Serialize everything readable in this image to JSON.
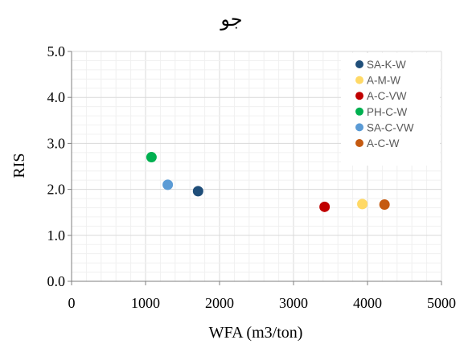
{
  "chart_data": {
    "type": "scatter",
    "title": "جو",
    "xlabel": "WFA (m3/ton)",
    "ylabel": "RIS",
    "xlim": [
      0,
      5000
    ],
    "ylim": [
      0,
      5
    ],
    "x_ticks": [
      0,
      1000,
      2000,
      3000,
      4000,
      5000
    ],
    "y_ticks": [
      0,
      1,
      2,
      3,
      4,
      5
    ],
    "x_tick_labels": [
      "0",
      "1000",
      "2000",
      "3000",
      "4000",
      "5000"
    ],
    "y_tick_labels": [
      "0.0",
      "1.0",
      "2.0",
      "3.0",
      "4.0",
      "5.0"
    ],
    "grid": true,
    "legend_position": "top-right",
    "series": [
      {
        "name": "SA-K-W",
        "color": "#1f4e79",
        "points": [
          {
            "x": 1710,
            "y": 1.96
          }
        ]
      },
      {
        "name": "A-M-W",
        "color": "#ffd966",
        "points": [
          {
            "x": 3930,
            "y": 1.68
          }
        ]
      },
      {
        "name": "A-C-VW",
        "color": "#c00000",
        "points": [
          {
            "x": 3420,
            "y": 1.62
          }
        ]
      },
      {
        "name": "PH-C-W",
        "color": "#00b050",
        "points": [
          {
            "x": 1080,
            "y": 2.7
          }
        ]
      },
      {
        "name": "SA-C-VW",
        "color": "#5b9bd5",
        "points": [
          {
            "x": 1300,
            "y": 2.1
          }
        ]
      },
      {
        "name": "A-C-W",
        "color": "#c55a11",
        "points": [
          {
            "x": 4230,
            "y": 1.67
          }
        ]
      }
    ]
  }
}
